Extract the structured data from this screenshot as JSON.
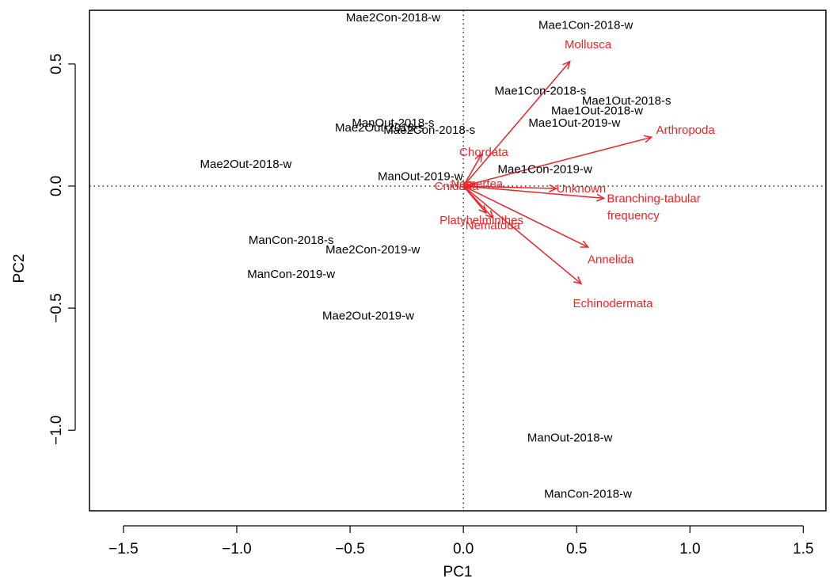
{
  "chart_data": {
    "type": "scatter",
    "title": "",
    "xlabel": "PC1",
    "ylabel": "PC2",
    "xlim": [
      -1.5,
      1.5
    ],
    "ylim": [
      -1.3,
      0.7
    ],
    "x_ticks": [
      -1.5,
      -1.0,
      -0.5,
      0.0,
      0.5,
      1.0,
      1.5
    ],
    "x_tick_labels": [
      "−1.5",
      "−1.0",
      "−0.5",
      "0.0",
      "0.5",
      "1.0",
      "1.5"
    ],
    "y_ticks": [
      -1.0,
      -0.5,
      0.0,
      0.5
    ],
    "y_tick_labels": [
      "−1.0",
      "−0.5",
      "0.0",
      "0.5"
    ],
    "grid": false,
    "reference_lines": "dotted lines at x = 0 and y = 0",
    "samples": [
      {
        "label": "Mae2Con-2018-w",
        "x": -0.31,
        "y": 0.69
      },
      {
        "label": "Mae1Con-2018-w",
        "x": 0.54,
        "y": 0.66
      },
      {
        "label": "Mae1Con-2018-s",
        "x": 0.34,
        "y": 0.39
      },
      {
        "label": "Mae1Out-2018-s",
        "x": 0.72,
        "y": 0.35
      },
      {
        "label": "Mae1Out-2018-w",
        "x": 0.59,
        "y": 0.31
      },
      {
        "label": "Mae1Out-2019-w",
        "x": 0.49,
        "y": 0.26
      },
      {
        "label": "ManOut-2018-s",
        "x": -0.31,
        "y": 0.26
      },
      {
        "label": "Mae2Out-2018-s",
        "x": -0.37,
        "y": 0.24
      },
      {
        "label": "Mae2Con-2018-s",
        "x": -0.15,
        "y": 0.23
      },
      {
        "label": "Mae2Out-2018-w",
        "x": -0.96,
        "y": 0.09
      },
      {
        "label": "ManOut-2019-w",
        "x": -0.19,
        "y": 0.04
      },
      {
        "label": "Mae1Con-2019-w",
        "x": 0.36,
        "y": 0.07
      },
      {
        "label": "ManCon-2018-s",
        "x": -0.76,
        "y": -0.22
      },
      {
        "label": "Mae2Con-2019-w",
        "x": -0.4,
        "y": -0.26
      },
      {
        "label": "ManCon-2019-w",
        "x": -0.76,
        "y": -0.36
      },
      {
        "label": "Mae2Out-2019-w",
        "x": -0.42,
        "y": -0.53
      },
      {
        "label": "ManOut-2018-w",
        "x": 0.47,
        "y": -1.03
      },
      {
        "label": "ManCon-2018-w",
        "x": 0.55,
        "y": -1.26
      }
    ],
    "variables": [
      {
        "label": "Mollusca",
        "x": 0.47,
        "y": 0.51,
        "label_x": 0.55,
        "label_y": 0.58
      },
      {
        "label": "Arthropoda",
        "x": 0.83,
        "y": 0.2,
        "label_x": 0.98,
        "label_y": 0.23
      },
      {
        "label": "Chordata",
        "x": 0.08,
        "y": 0.13,
        "label_x": 0.09,
        "label_y": 0.14
      },
      {
        "label": "Unknown",
        "x": 0.41,
        "y": -0.01,
        "label_x": 0.52,
        "label_y": -0.01
      },
      {
        "label": "Branching-tabular",
        "x": 0.62,
        "y": -0.05,
        "label_x": 0.84,
        "label_y": -0.05
      },
      {
        "label": "frequency",
        "x": 0.62,
        "y": -0.05,
        "label_x": 0.75,
        "label_y": -0.12
      },
      {
        "label": "Annelida",
        "x": 0.55,
        "y": -0.25,
        "label_x": 0.65,
        "label_y": -0.3
      },
      {
        "label": "Echinodermata",
        "x": 0.52,
        "y": -0.4,
        "label_x": 0.66,
        "label_y": -0.48
      },
      {
        "label": "Platyhelminthes",
        "x": 0.13,
        "y": -0.13,
        "label_x": 0.08,
        "label_y": -0.14
      },
      {
        "label": "Nematoda",
        "x": 0.1,
        "y": -0.11,
        "label_x": 0.13,
        "label_y": -0.16
      },
      {
        "label": "Cnidaria",
        "x": 0.03,
        "y": 0.0,
        "label_x": -0.03,
        "label_y": 0.0
      },
      {
        "label": "Nemertea",
        "x": 0.05,
        "y": 0.01,
        "label_x": 0.06,
        "label_y": 0.01
      }
    ],
    "colors": {
      "samples": "#000000",
      "variables": "#e8262a",
      "axes": "#000000"
    }
  }
}
